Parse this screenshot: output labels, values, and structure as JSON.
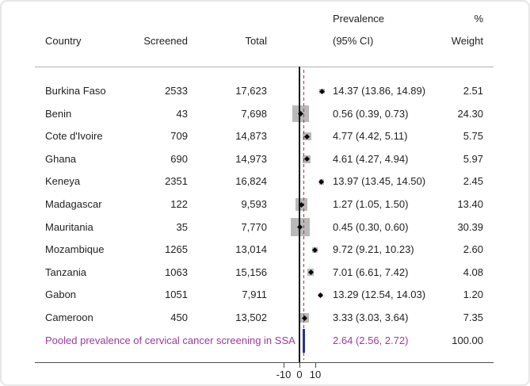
{
  "chart_data": {
    "type": "forest",
    "description": "Forest plot of pooled prevalence of cervical cancer screening in sub-Saharan Africa (SSA)",
    "columns": {
      "country": "Country",
      "screened": "Screened",
      "total": "Total",
      "prevalence_line1": "Prevalence",
      "prevalence_line2": "(95% CI)",
      "weight_line1": "%",
      "weight_line2": "Weight"
    },
    "rows": [
      {
        "country": "Burkina Faso",
        "screened": "2533",
        "total": "17,623",
        "estimate": 14.37,
        "ci_low": 13.86,
        "ci_high": 14.89,
        "prevalence_label": "14.37 (13.86, 14.89)",
        "weight": 2.51,
        "weight_label": "2.51"
      },
      {
        "country": "Benin",
        "screened": "43",
        "total": "7,698",
        "estimate": 0.56,
        "ci_low": 0.39,
        "ci_high": 0.73,
        "prevalence_label": "0.56 (0.39, 0.73)",
        "weight": 24.3,
        "weight_label": "24.30"
      },
      {
        "country": "Cote d'Ivoire",
        "screened": "709",
        "total": "14,873",
        "estimate": 4.77,
        "ci_low": 4.42,
        "ci_high": 5.11,
        "prevalence_label": "4.77 (4.42, 5.11)",
        "weight": 5.75,
        "weight_label": "5.75"
      },
      {
        "country": "Ghana",
        "screened": "690",
        "total": "14,973",
        "estimate": 4.61,
        "ci_low": 4.27,
        "ci_high": 4.94,
        "prevalence_label": "4.61 (4.27, 4.94)",
        "weight": 5.97,
        "weight_label": "5.97"
      },
      {
        "country": "Keneya",
        "screened": "2351",
        "total": "16,824",
        "estimate": 13.97,
        "ci_low": 13.45,
        "ci_high": 14.5,
        "prevalence_label": "13.97 (13.45, 14.50)",
        "weight": 2.45,
        "weight_label": "2.45"
      },
      {
        "country": "Madagascar",
        "screened": "122",
        "total": "9,593",
        "estimate": 1.27,
        "ci_low": 1.05,
        "ci_high": 1.5,
        "prevalence_label": "1.27 (1.05, 1.50)",
        "weight": 13.4,
        "weight_label": "13.40"
      },
      {
        "country": "Mauritania",
        "screened": "35",
        "total": "7,770",
        "estimate": 0.45,
        "ci_low": 0.3,
        "ci_high": 0.6,
        "prevalence_label": "0.45 (0.30, 0.60)",
        "weight": 30.39,
        "weight_label": "30.39"
      },
      {
        "country": "Mozambique",
        "screened": "1265",
        "total": "13,014",
        "estimate": 9.72,
        "ci_low": 9.21,
        "ci_high": 10.23,
        "prevalence_label": "9.72 (9.21, 10.23)",
        "weight": 2.6,
        "weight_label": "2.60"
      },
      {
        "country": "Tanzania",
        "screened": "1063",
        "total": "15,156",
        "estimate": 7.01,
        "ci_low": 6.61,
        "ci_high": 7.42,
        "prevalence_label": "7.01 (6.61, 7.42)",
        "weight": 4.08,
        "weight_label": "4.08"
      },
      {
        "country": "Gabon",
        "screened": "1051",
        "total": "7,911",
        "estimate": 13.29,
        "ci_low": 12.54,
        "ci_high": 14.03,
        "prevalence_label": "13.29 (12.54, 14.03)",
        "weight": 1.2,
        "weight_label": "1.20"
      },
      {
        "country": "Cameroon",
        "screened": "450",
        "total": "13,502",
        "estimate": 3.33,
        "ci_low": 3.03,
        "ci_high": 3.64,
        "prevalence_label": "3.33 (3.03, 3.64)",
        "weight": 7.35,
        "weight_label": "7.35"
      }
    ],
    "pooled": {
      "label": "Pooled prevalence of cervical cancer screening in SSA",
      "estimate": 2.64,
      "ci_low": 2.56,
      "ci_high": 2.72,
      "prevalence_label": "2.64 (2.56, 2.72)",
      "weight_label": "100.00"
    },
    "axis": {
      "ticks": [
        -10,
        0,
        10
      ],
      "tick_labels": [
        "-10",
        "0",
        "10"
      ],
      "zero_reference": 0
    },
    "layout_hints": {
      "grid": false,
      "legend": "none",
      "null_line": "solid black at 0",
      "pooled_line": "dashed at pooled estimate"
    },
    "colors": {
      "marker_square": "#b9b9b9",
      "marker_diamond": "#0a0a0a",
      "zero_line": "#1a1a1a",
      "pooled_dashed_line": "#a03c40",
      "pooled_bar": "#2b2f9e",
      "pooled_text": "#9b3a9e",
      "rule_top": "#b2b2b2",
      "rule_bottom": "#4d4d4d",
      "text": "#1f1f1f"
    }
  }
}
